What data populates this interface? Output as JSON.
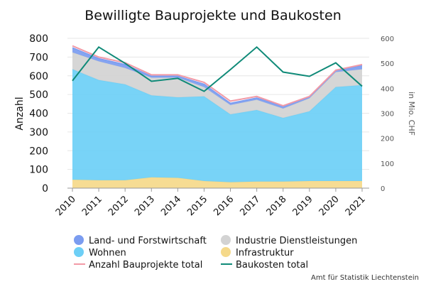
{
  "chart_data": {
    "type": "area",
    "title": "Bewilligte Bauprojekte und Baukosten",
    "ylabel": "Anzahl",
    "ylabel_right": "in Mio. CHF",
    "source": "Amt für Statistik Liechtenstein",
    "categories": [
      "2010",
      "2011",
      "2012",
      "2013",
      "2014",
      "2015",
      "2016",
      "2017",
      "2018",
      "2019",
      "2020",
      "2021"
    ],
    "ylim": [
      0,
      800
    ],
    "ylim_right": [
      0,
      600
    ],
    "yticks": [
      0,
      100,
      200,
      300,
      400,
      500,
      600,
      700,
      800
    ],
    "yticks_right": [
      0,
      100,
      200,
      300,
      400,
      500,
      600
    ],
    "grid": true,
    "legend_position": "bottom",
    "stacked_series": [
      {
        "name": "Infrastruktur",
        "color": "#f5d98a",
        "values": [
          45,
          42,
          42,
          58,
          55,
          38,
          32,
          35,
          35,
          38,
          38,
          38
        ]
      },
      {
        "name": "Wohnen",
        "color": "#6dcff6",
        "values": [
          590,
          535,
          512,
          437,
          430,
          452,
          362,
          382,
          340,
          372,
          502,
          512
        ]
      },
      {
        "name": "Industrie Dienstleistungen",
        "color": "#d3d3d3",
        "values": [
          90,
          100,
          88,
          95,
          105,
          50,
          50,
          55,
          50,
          70,
          80,
          85
        ]
      },
      {
        "name": "Land- und Forstwirtschaft",
        "color": "#7b9cf0",
        "values": [
          25,
          15,
          18,
          8,
          8,
          15,
          10,
          10,
          12,
          8,
          8,
          20
        ]
      }
    ],
    "line_series": [
      {
        "name": "Anzahl Bauprojekte total",
        "color": "#f29aa6",
        "axis": "left",
        "values": [
          760,
          700,
          670,
          605,
          605,
          565,
          465,
          490,
          440,
          490,
          630,
          660
        ]
      },
      {
        "name": "Baukosten total",
        "color": "#0f8a78",
        "axis": "right",
        "values": [
          430,
          565,
          500,
          428,
          440,
          388,
          475,
          565,
          465,
          448,
          502,
          408
        ]
      }
    ],
    "legend": [
      {
        "label": "Land- und Forstwirtschaft",
        "kind": "dot",
        "color": "#7b9cf0"
      },
      {
        "label": "Industrie Dienstleistungen",
        "kind": "dot",
        "color": "#d3d3d3"
      },
      {
        "label": "Wohnen",
        "kind": "dot",
        "color": "#6dcff6"
      },
      {
        "label": "Infrastruktur",
        "kind": "dot",
        "color": "#f5d98a"
      },
      {
        "label": "Anzahl Bauprojekte total",
        "kind": "line",
        "color": "#f29aa6"
      },
      {
        "label": "Baukosten total",
        "kind": "line",
        "color": "#0f8a78"
      }
    ]
  }
}
